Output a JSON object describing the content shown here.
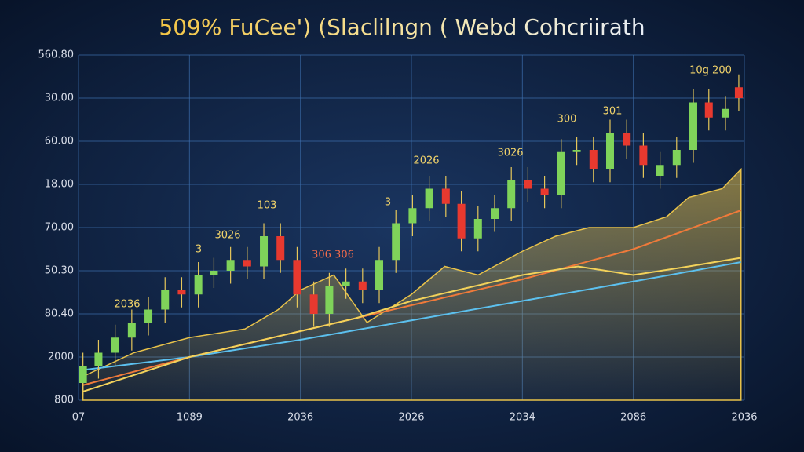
{
  "chart_data": {
    "type": "candlestick",
    "title": "509% FuCee') (Slaclilngn ( Webd Cohcriirath",
    "xlim": [
      0,
      6
    ],
    "xticks": [
      {
        "value": 0,
        "label": "07"
      },
      {
        "value": 1,
        "label": "1089"
      },
      {
        "value": 2,
        "label": "2036"
      },
      {
        "value": 3,
        "label": "2026"
      },
      {
        "value": 4,
        "label": "2034"
      },
      {
        "value": 5,
        "label": "2086"
      },
      {
        "value": 6,
        "label": "2036"
      }
    ],
    "ylim": [
      0,
      8
    ],
    "yticks": [
      {
        "value": 0,
        "label": "800"
      },
      {
        "value": 1,
        "label": "2000"
      },
      {
        "value": 2,
        "label": "80.40"
      },
      {
        "value": 3,
        "label": "50.30"
      },
      {
        "value": 4,
        "label": "70.00"
      },
      {
        "value": 5,
        "label": "18.00"
      },
      {
        "value": 6,
        "label": "60.00"
      },
      {
        "value": 7,
        "label": "30.00"
      },
      {
        "value": 8,
        "label": "560.80"
      }
    ],
    "grid": true,
    "up_color": "#7fd35a",
    "down_color": "#e8392f",
    "x": [
      0.04,
      0.18,
      0.33,
      0.48,
      0.63,
      0.78,
      0.93,
      1.08,
      1.22,
      1.37,
      1.52,
      1.67,
      1.82,
      1.97,
      2.12,
      2.26,
      2.41,
      2.56,
      2.71,
      2.86,
      3.01,
      3.16,
      3.31,
      3.45,
      3.6,
      3.75,
      3.9,
      4.05,
      4.2,
      4.35,
      4.49,
      4.64,
      4.79,
      4.94,
      5.09,
      5.24,
      5.39,
      5.54,
      5.68,
      5.83,
      5.95
    ],
    "open": [
      0.4,
      0.8,
      1.1,
      1.45,
      1.8,
      2.1,
      2.55,
      2.45,
      2.9,
      3.0,
      3.25,
      3.1,
      3.8,
      3.25,
      2.45,
      2.0,
      2.65,
      2.75,
      2.55,
      3.25,
      4.1,
      4.45,
      4.9,
      4.55,
      3.75,
      4.2,
      4.45,
      5.1,
      4.9,
      4.75,
      5.75,
      5.8,
      5.35,
      6.2,
      5.9,
      5.2,
      5.45,
      5.8,
      6.9,
      6.55,
      7.25
    ],
    "high": [
      1.1,
      1.4,
      1.75,
      2.1,
      2.4,
      2.85,
      2.85,
      3.2,
      3.3,
      3.55,
      3.55,
      4.1,
      4.1,
      3.55,
      2.75,
      2.95,
      3.05,
      3.05,
      3.55,
      4.4,
      4.75,
      5.2,
      5.2,
      4.85,
      4.5,
      4.75,
      5.4,
      5.4,
      5.2,
      6.05,
      6.1,
      6.1,
      6.5,
      6.5,
      6.2,
      5.75,
      6.1,
      7.2,
      7.2,
      7.05,
      7.55
    ],
    "low": [
      0.1,
      0.5,
      0.8,
      1.15,
      1.5,
      1.8,
      2.15,
      2.15,
      2.6,
      2.7,
      2.8,
      2.8,
      2.95,
      2.15,
      1.7,
      1.7,
      2.35,
      2.25,
      2.25,
      2.95,
      3.8,
      4.15,
      4.25,
      3.45,
      3.45,
      3.9,
      4.15,
      4.6,
      4.45,
      4.45,
      5.45,
      5.05,
      5.05,
      5.6,
      5.15,
      4.9,
      5.15,
      5.5,
      6.25,
      6.25,
      6.7
    ],
    "close": [
      0.8,
      1.1,
      1.45,
      1.8,
      2.1,
      2.55,
      2.45,
      2.9,
      3.0,
      3.25,
      3.1,
      3.8,
      3.25,
      2.45,
      2.0,
      2.65,
      2.75,
      2.55,
      3.25,
      4.1,
      4.45,
      4.9,
      4.55,
      3.75,
      4.2,
      4.45,
      5.1,
      4.9,
      4.75,
      5.75,
      5.8,
      5.35,
      6.2,
      5.9,
      5.45,
      5.45,
      5.8,
      6.9,
      6.55,
      6.75,
      7.0
    ],
    "area": {
      "color": "#e8c24a",
      "x": [
        0.04,
        0.5,
        1.0,
        1.5,
        1.8,
        2.0,
        2.3,
        2.6,
        3.0,
        3.3,
        3.6,
        4.0,
        4.3,
        4.6,
        5.0,
        5.3,
        5.5,
        5.8,
        5.97
      ],
      "values": [
        0.55,
        1.1,
        1.45,
        1.65,
        2.1,
        2.55,
        2.9,
        1.8,
        2.45,
        3.1,
        2.9,
        3.45,
        3.8,
        4.0,
        4.0,
        4.25,
        4.7,
        4.9,
        5.35
      ]
    },
    "lines": [
      {
        "color": "#5cc0ee",
        "x": [
          0.04,
          1,
          2,
          3,
          4,
          5,
          5.97
        ],
        "values": [
          0.7,
          1.0,
          1.4,
          1.85,
          2.3,
          2.75,
          3.2
        ]
      },
      {
        "color": "#f07a3a",
        "x": [
          0.04,
          1,
          2,
          3,
          4,
          5,
          5.97
        ],
        "values": [
          0.35,
          1.0,
          1.6,
          2.2,
          2.8,
          3.5,
          4.4
        ]
      },
      {
        "color": "#f3d25a",
        "x": [
          0.04,
          1,
          2,
          2.5,
          3,
          3.5,
          4,
          4.5,
          5,
          5.5,
          5.97
        ],
        "values": [
          0.2,
          1.0,
          1.6,
          1.9,
          2.3,
          2.6,
          2.9,
          3.1,
          2.9,
          3.1,
          3.3
        ]
      }
    ],
    "annotations": [
      "2036",
      "3026",
      "3",
      "103",
      "306 306",
      "3",
      "2026",
      "3026",
      "300",
      "301",
      "10g 200"
    ]
  }
}
